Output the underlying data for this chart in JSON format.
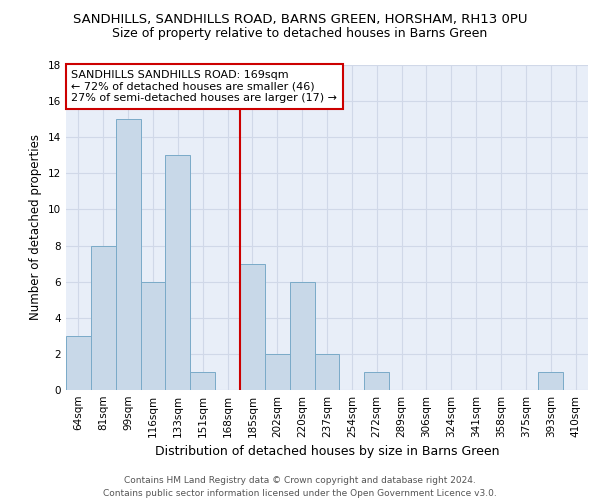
{
  "title1": "SANDHILLS, SANDHILLS ROAD, BARNS GREEN, HORSHAM, RH13 0PU",
  "title2": "Size of property relative to detached houses in Barns Green",
  "xlabel": "Distribution of detached houses by size in Barns Green",
  "ylabel": "Number of detached properties",
  "categories": [
    "64sqm",
    "81sqm",
    "99sqm",
    "116sqm",
    "133sqm",
    "151sqm",
    "168sqm",
    "185sqm",
    "202sqm",
    "220sqm",
    "237sqm",
    "254sqm",
    "272sqm",
    "289sqm",
    "306sqm",
    "324sqm",
    "341sqm",
    "358sqm",
    "375sqm",
    "393sqm",
    "410sqm"
  ],
  "values": [
    3,
    8,
    15,
    6,
    13,
    1,
    0,
    7,
    2,
    6,
    2,
    0,
    1,
    0,
    0,
    0,
    0,
    0,
    0,
    1,
    0
  ],
  "bar_color": "#c8d8e8",
  "bar_edge_color": "#7aaac8",
  "annotation_text": "SANDHILLS SANDHILLS ROAD: 169sqm\n← 72% of detached houses are smaller (46)\n27% of semi-detached houses are larger (17) →",
  "annotation_box_color": "#ffffff",
  "annotation_box_edge_color": "#cc0000",
  "vline_color": "#cc0000",
  "ylim": [
    0,
    18
  ],
  "yticks": [
    0,
    2,
    4,
    6,
    8,
    10,
    12,
    14,
    16,
    18
  ],
  "grid_color": "#d0d8e8",
  "background_color": "#e8eef8",
  "footer_text": "Contains HM Land Registry data © Crown copyright and database right 2024.\nContains public sector information licensed under the Open Government Licence v3.0.",
  "title1_fontsize": 9.5,
  "title2_fontsize": 9,
  "xlabel_fontsize": 9,
  "ylabel_fontsize": 8.5,
  "tick_fontsize": 7.5,
  "annotation_fontsize": 8,
  "footer_fontsize": 6.5
}
